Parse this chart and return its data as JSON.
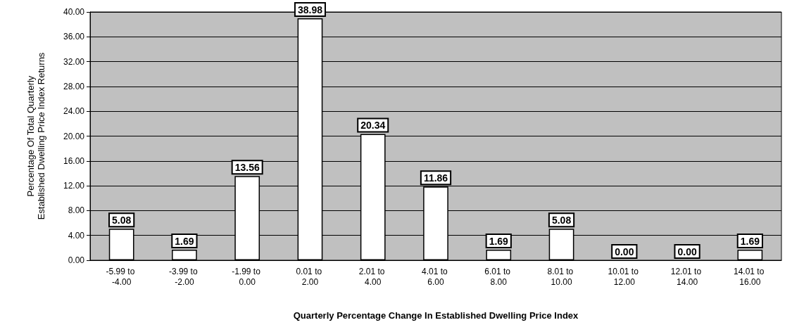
{
  "chart_data": {
    "type": "bar",
    "xlabel": "Quarterly Percentage Change In Established Dwelling Price Index",
    "ylabel": "Percentage Of Total Quarterly Established Dwelling Price Index Returns",
    "categories": [
      "-5.99 to -4.00",
      "-3.99 to -2.00",
      "-1.99 to 0.00",
      "0.01 to 2.00",
      "2.01 to 4.00",
      "4.01 to 6.00",
      "6.01 to 8.00",
      "8.01 to 10.00",
      "10.01 to 12.00",
      "12.01 to 14.00",
      "14.01 to 16.00"
    ],
    "values": [
      5.08,
      1.69,
      13.56,
      38.98,
      20.34,
      11.86,
      1.69,
      5.08,
      0.0,
      0.0,
      1.69
    ],
    "value_labels": [
      "5.08",
      "1.69",
      "13.56",
      "38.98",
      "20.34",
      "11.86",
      "1.69",
      "5.08",
      "0.00",
      "0.00",
      "1.69"
    ],
    "color": "#ffffff",
    "ylim": [
      0,
      40
    ],
    "yticks": [
      {
        "value": 0,
        "label": "0.00"
      },
      {
        "value": 4,
        "label": "4.00"
      },
      {
        "value": 8,
        "label": "8.00"
      },
      {
        "value": 12,
        "label": "12.00"
      },
      {
        "value": 16,
        "label": "16.00"
      },
      {
        "value": 20,
        "label": "20.00"
      },
      {
        "value": 24,
        "label": "24.00"
      },
      {
        "value": 28,
        "label": "28.00"
      },
      {
        "value": 32,
        "label": "32.00"
      },
      {
        "value": 36,
        "label": "36.00"
      },
      {
        "value": 40,
        "label": "40.00"
      }
    ],
    "grid": "y"
  }
}
